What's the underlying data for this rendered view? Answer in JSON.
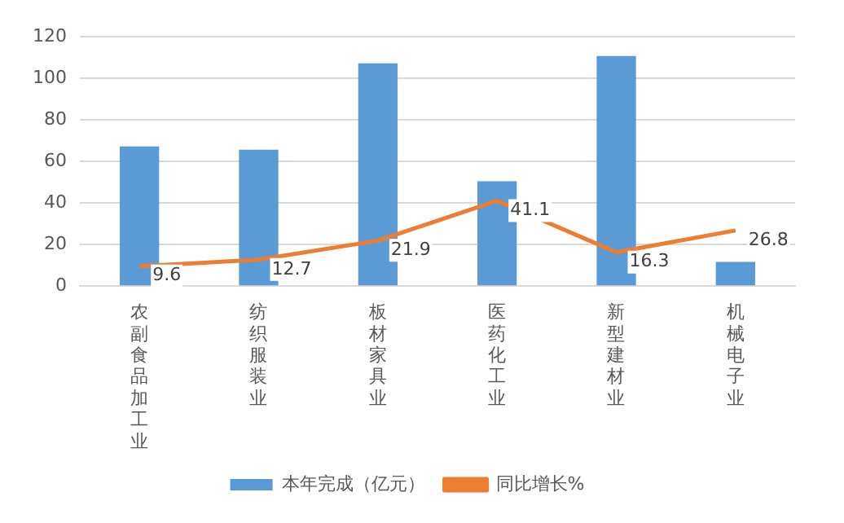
{
  "chart_data": {
    "type": "bar",
    "categories": [
      "农副食品加工业",
      "纺织服装业",
      "板材家具业",
      "医药化工业",
      "新型建材业",
      "机械电子业"
    ],
    "series": [
      {
        "name": "本年完成（亿元）",
        "color": "#5b9bd5",
        "values": [
          67.2,
          65.7,
          107.2,
          50.5,
          110.8,
          11.6
        ]
      },
      {
        "name": "同比增长%",
        "type": "line",
        "color": "#ed7d31",
        "values": [
          9.6,
          12.7,
          21.9,
          41.1,
          16.3,
          26.8
        ],
        "value_labels": [
          "9.6",
          "12.7",
          "21.9",
          "41.1",
          "16.3",
          "26.8"
        ]
      }
    ],
    "ylim": [
      0,
      120
    ],
    "yticks": [
      0,
      20,
      40,
      60,
      80,
      100,
      120
    ],
    "grid": "y",
    "legend": "bottom",
    "marker": "none",
    "line_style": "solid"
  }
}
